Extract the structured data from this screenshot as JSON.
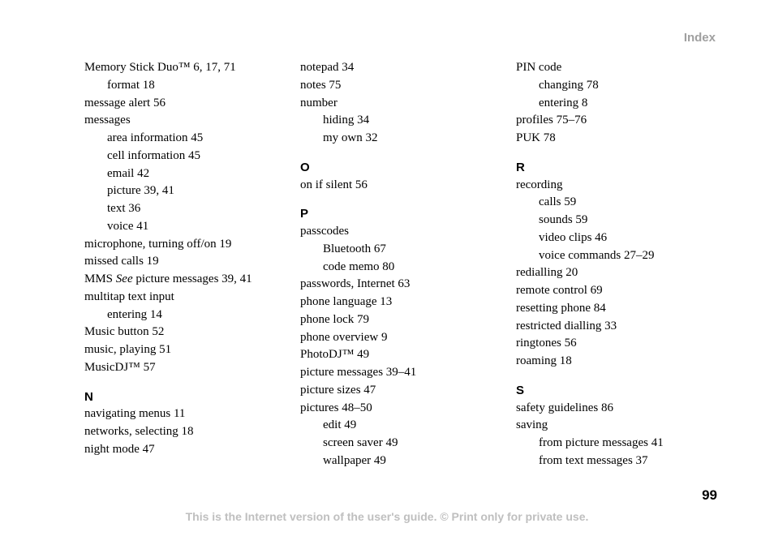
{
  "header": {
    "title": "Index"
  },
  "page_number": "99",
  "footer": "This is the Internet version of the user's guide. © Print only for private use.",
  "columns": [
    {
      "items": [
        {
          "text": "Memory Stick Duo™ 6, 17, 71",
          "indent": 0
        },
        {
          "text": "format 18",
          "indent": 1
        },
        {
          "text": "message alert 56",
          "indent": 0
        },
        {
          "text": "messages",
          "indent": 0
        },
        {
          "text": "area information 45",
          "indent": 1
        },
        {
          "text": "cell information 45",
          "indent": 1
        },
        {
          "text": "email 42",
          "indent": 1
        },
        {
          "text": "picture 39, 41",
          "indent": 1
        },
        {
          "text": "text 36",
          "indent": 1
        },
        {
          "text": "voice 41",
          "indent": 1
        },
        {
          "text": "microphone, turning off/on 19",
          "indent": 0
        },
        {
          "text": "missed calls 19",
          "indent": 0
        },
        {
          "html": "MMS <span class=\"italic\">See</span> picture messages 39, 41",
          "indent": 0
        },
        {
          "text": "multitap text input",
          "indent": 0
        },
        {
          "text": "entering 14",
          "indent": 1
        },
        {
          "text": "Music button 52",
          "indent": 0
        },
        {
          "text": "music, playing 51",
          "indent": 0
        },
        {
          "text": "MusicDJ™ 57",
          "indent": 0
        },
        {
          "letter": "N"
        },
        {
          "text": "navigating menus 11",
          "indent": 0
        },
        {
          "text": "networks, selecting 18",
          "indent": 0
        },
        {
          "text": "night mode 47",
          "indent": 0
        }
      ]
    },
    {
      "items": [
        {
          "text": "notepad 34",
          "indent": 0
        },
        {
          "text": "notes 75",
          "indent": 0
        },
        {
          "text": "number",
          "indent": 0
        },
        {
          "text": "hiding 34",
          "indent": 1
        },
        {
          "text": "my own 32",
          "indent": 1
        },
        {
          "letter": "O"
        },
        {
          "text": "on if silent 56",
          "indent": 0
        },
        {
          "letter": "P"
        },
        {
          "text": "passcodes",
          "indent": 0
        },
        {
          "text": "Bluetooth 67",
          "indent": 1
        },
        {
          "text": "code memo 80",
          "indent": 1
        },
        {
          "text": "passwords, Internet 63",
          "indent": 0
        },
        {
          "text": "phone language 13",
          "indent": 0
        },
        {
          "text": "phone lock 79",
          "indent": 0
        },
        {
          "text": "phone overview 9",
          "indent": 0
        },
        {
          "text": "PhotoDJ™ 49",
          "indent": 0
        },
        {
          "text": "picture messages 39–41",
          "indent": 0
        },
        {
          "text": "picture sizes 47",
          "indent": 0
        },
        {
          "text": "pictures 48–50",
          "indent": 0
        },
        {
          "text": "edit 49",
          "indent": 1
        },
        {
          "text": "screen saver 49",
          "indent": 1
        },
        {
          "text": "wallpaper 49",
          "indent": 1
        }
      ]
    },
    {
      "items": [
        {
          "text": "PIN code",
          "indent": 0
        },
        {
          "text": "changing 78",
          "indent": 1
        },
        {
          "text": "entering 8",
          "indent": 1
        },
        {
          "text": "profiles 75–76",
          "indent": 0
        },
        {
          "text": "PUK 78",
          "indent": 0
        },
        {
          "letter": "R"
        },
        {
          "text": "recording",
          "indent": 0
        },
        {
          "text": "calls 59",
          "indent": 1
        },
        {
          "text": "sounds 59",
          "indent": 1
        },
        {
          "text": "video clips 46",
          "indent": 1
        },
        {
          "text": "voice commands 27–29",
          "indent": 1
        },
        {
          "text": "redialling 20",
          "indent": 0
        },
        {
          "text": "remote control 69",
          "indent": 0
        },
        {
          "text": "resetting phone 84",
          "indent": 0
        },
        {
          "text": "restricted dialling 33",
          "indent": 0
        },
        {
          "text": "ringtones 56",
          "indent": 0
        },
        {
          "text": "roaming 18",
          "indent": 0
        },
        {
          "letter": "S"
        },
        {
          "text": "safety guidelines 86",
          "indent": 0
        },
        {
          "text": "saving",
          "indent": 0
        },
        {
          "text": "from picture messages 41",
          "indent": 1
        },
        {
          "text": "from text messages 37",
          "indent": 1
        }
      ]
    }
  ]
}
